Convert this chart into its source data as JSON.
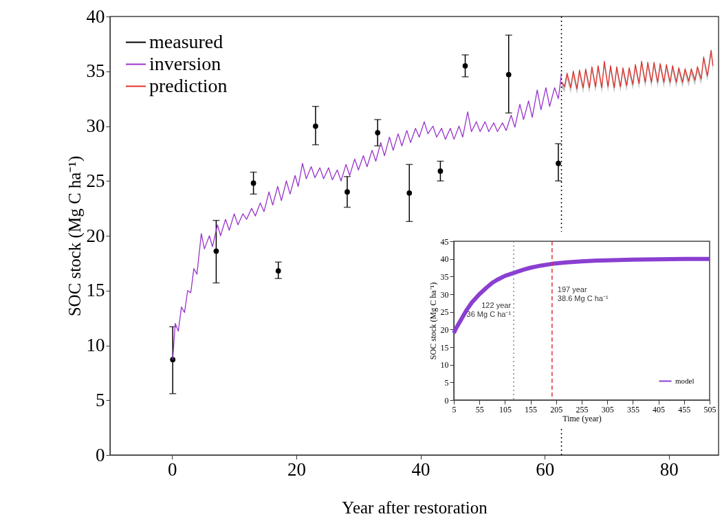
{
  "chart_data": [
    {
      "type": "line",
      "xlabel": "Year after restoration",
      "ylabel": "SOC stock (Mg C ha⁻¹)",
      "xlim": [
        -10,
        88
      ],
      "xticks": [
        0,
        20,
        40,
        60,
        80
      ],
      "ylim": [
        0,
        40
      ],
      "yticks": [
        0,
        5,
        10,
        15,
        20,
        25,
        30,
        35,
        40
      ],
      "legend": "top left",
      "series": [
        {
          "name": "measured",
          "type": "scatter",
          "marker": "circle",
          "color": "#000000",
          "x": [
            0.1,
            7.1,
            13.1,
            17.1,
            23.1,
            28.2,
            33.1,
            38.2,
            43.2,
            47.2,
            54.2,
            62.2
          ],
          "values": [
            8.7,
            18.6,
            24.8,
            16.8,
            30.0,
            24.0,
            29.4,
            23.9,
            25.9,
            35.5,
            34.7,
            26.6
          ],
          "errors": [
            [
              5.6,
              11.7
            ],
            [
              15.7,
              21.4
            ],
            [
              23.8,
              25.8
            ],
            [
              16.1,
              17.6
            ],
            [
              28.3,
              31.8
            ],
            [
              22.6,
              25.4
            ],
            [
              28.2,
              30.6
            ],
            [
              21.3,
              26.5
            ],
            [
              25.0,
              26.8
            ],
            [
              34.5,
              36.5
            ],
            [
              31.2,
              38.3
            ],
            [
              25.0,
              28.4
            ]
          ]
        },
        {
          "name": "inversion",
          "type": "line",
          "color": "#9932cc",
          "x": [
            0.1,
            0.5,
            1,
            1.5,
            2,
            2.5,
            3,
            3.5,
            4,
            4.7,
            5.2,
            6,
            6.5,
            7.3,
            7.8,
            8.6,
            9.2,
            10,
            10.6,
            11.4,
            12,
            12.8,
            13.4,
            14.2,
            14.8,
            15.6,
            16.2,
            17,
            17.6,
            18.4,
            19,
            19.8,
            20.3,
            21,
            21.6,
            22.4,
            23,
            23.8,
            24.4,
            25.2,
            25.8,
            26.6,
            27.2,
            28,
            28.6,
            29.4,
            30,
            30.8,
            31.4,
            32.2,
            32.8,
            33.6,
            34.2,
            35,
            35.6,
            36.4,
            37,
            37.8,
            38.4,
            39.2,
            39.8,
            40.6,
            41.2,
            42,
            42.6,
            43.4,
            44,
            44.8,
            45.4,
            46.2,
            46.8,
            47.6,
            48.2,
            49,
            49.6,
            50.4,
            51,
            51.8,
            52.4,
            53.2,
            53.8,
            54.6,
            55.2,
            56,
            56.6,
            57.4,
            58,
            58.8,
            59.4,
            60.2,
            60.8,
            61.6,
            62.2,
            62.7
          ],
          "values": [
            8.7,
            12,
            11.3,
            13.5,
            13,
            15,
            14.8,
            17,
            16.5,
            20.2,
            18.8,
            20,
            19,
            21,
            20,
            21.5,
            20.5,
            22,
            21,
            22,
            21.5,
            22.5,
            21.8,
            23,
            22.2,
            24,
            22.8,
            24.5,
            23.2,
            25,
            23.8,
            25.5,
            24.5,
            26.6,
            25.2,
            26.3,
            25.3,
            26.2,
            25.2,
            26.2,
            25.1,
            26,
            25,
            26.5,
            25.5,
            27,
            26,
            27.3,
            26.3,
            27.8,
            26.8,
            28.5,
            27.3,
            29,
            27.8,
            29.3,
            28.2,
            29.6,
            28.5,
            29.8,
            29,
            30.4,
            29.3,
            30,
            29,
            29.8,
            28.8,
            29.8,
            28.8,
            30,
            29,
            31.3,
            29.5,
            30.4,
            29.5,
            30.4,
            29.5,
            30.3,
            29.5,
            30.3,
            29.6,
            31,
            29.9,
            32,
            30.6,
            32.3,
            30.8,
            33.3,
            31.5,
            33.5,
            31.8,
            33.5,
            32.5,
            34.8
          ]
        },
        {
          "name": "prediction",
          "type": "line",
          "color": "#e0302a",
          "x": [
            62.7,
            63.2,
            63.6,
            64.2,
            64.6,
            65.2,
            65.6,
            66.2,
            66.6,
            67.2,
            67.6,
            68.2,
            68.6,
            69.2,
            69.6,
            70.2,
            70.6,
            71.2,
            71.6,
            72.2,
            72.6,
            73.2,
            73.6,
            74.2,
            74.6,
            75.2,
            75.6,
            76.2,
            76.6,
            77.2,
            77.6,
            78.2,
            78.6,
            79.2,
            79.6,
            80.2,
            80.6,
            81.2,
            81.6,
            82.2,
            82.6,
            83.2,
            83.6,
            84.2,
            84.6,
            85.2,
            85.6,
            86.2,
            86.8,
            87.1
          ],
          "values": [
            34.0,
            33.6,
            34.8,
            33.5,
            35.0,
            33.4,
            35.1,
            33.5,
            35.2,
            33.5,
            35.4,
            33.6,
            35.5,
            33.5,
            35.9,
            33.6,
            35.5,
            33.5,
            35.4,
            33.6,
            35.3,
            33.7,
            35.3,
            33.8,
            35.6,
            33.9,
            35.9,
            34.0,
            35.8,
            34.0,
            35.8,
            34.0,
            35.7,
            34.0,
            35.6,
            34.0,
            35.5,
            34.0,
            35.3,
            34.0,
            35.2,
            34.1,
            35.2,
            34.2,
            35.4,
            34.3,
            36.3,
            34.6,
            36.9,
            35.5
          ],
          "lower": [
            33.5,
            33.1,
            34.3,
            33.0,
            34.5,
            32.9,
            34.6,
            33.0,
            34.7,
            33.0,
            34.9,
            33.1,
            35.0,
            33.0,
            35.4,
            33.1,
            35.0,
            33.0,
            34.9,
            33.1,
            34.8,
            33.2,
            34.8,
            33.3,
            35.1,
            33.4,
            35.4,
            33.5,
            35.3,
            33.5,
            35.3,
            33.5,
            35.2,
            33.5,
            35.1,
            33.5,
            35.0,
            33.5,
            34.8,
            33.5,
            34.7,
            33.6,
            34.7,
            33.7,
            34.9,
            33.8,
            35.8,
            34.1,
            36.4,
            35.0
          ],
          "upper": [
            34.2,
            33.8,
            35.0,
            33.7,
            35.2,
            33.6,
            35.3,
            33.7,
            35.4,
            33.7,
            35.6,
            33.8,
            35.7,
            33.7,
            36.1,
            33.8,
            35.7,
            33.7,
            35.6,
            33.8,
            35.5,
            33.9,
            35.5,
            34.0,
            35.8,
            34.1,
            36.1,
            34.2,
            36.0,
            34.2,
            36.0,
            34.2,
            35.9,
            34.2,
            35.8,
            34.2,
            35.7,
            34.2,
            35.5,
            34.2,
            35.4,
            34.3,
            35.4,
            34.4,
            35.6,
            34.5,
            36.5,
            34.8,
            37.1,
            35.7
          ]
        }
      ],
      "ref_lines": [
        {
          "axis": "x",
          "value": 62.7,
          "color": "#000000",
          "line_style": "dotted"
        }
      ]
    },
    {
      "type": "line",
      "xlabel": "Time (year)",
      "ylabel": "SOC stock (Mg C ha⁻¹)",
      "xlim": [
        5,
        505
      ],
      "xticks": [
        5,
        55,
        105,
        155,
        205,
        255,
        305,
        355,
        405,
        455,
        505
      ],
      "ylim": [
        0,
        45
      ],
      "yticks": [
        0,
        5,
        10,
        15,
        20,
        25,
        30,
        35,
        40,
        45
      ],
      "legend": "bottom right",
      "series": [
        {
          "name": "model",
          "type": "line",
          "color": "#8a3fd1",
          "x": [
            5,
            10,
            20,
            30,
            40,
            55,
            70,
            80,
            90,
            105,
            122,
            140,
            155,
            175,
            197,
            225,
            255,
            280,
            305,
            355,
            405,
            455,
            505
          ],
          "values": [
            19,
            20.5,
            23,
            25.5,
            27.6,
            30,
            32,
            33.2,
            34.1,
            35.2,
            36,
            36.9,
            37.5,
            38.1,
            38.6,
            39,
            39.3,
            39.5,
            39.6,
            39.8,
            39.9,
            40,
            40
          ]
        }
      ],
      "ref_lines": [
        {
          "axis": "x",
          "value": 122,
          "color": "#6f8fb0",
          "line_style": "dotted",
          "label": "122 year\n36 Mg C ha⁻¹"
        },
        {
          "axis": "x",
          "value": 197,
          "color": "#e03030",
          "line_style": "dashed",
          "label": "197 year\n38.6 Mg C ha⁻¹"
        }
      ]
    }
  ]
}
